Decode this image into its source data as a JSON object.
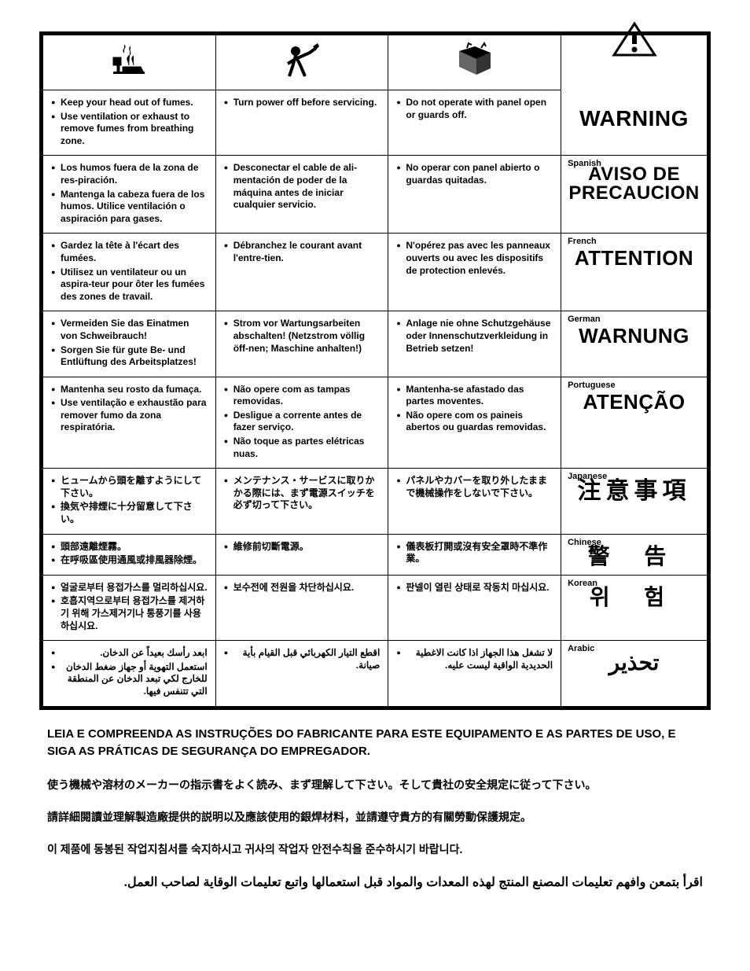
{
  "colors": {
    "border": "#000000",
    "text": "#000000",
    "bg": "#ffffff"
  },
  "columns": [
    {
      "icon": "fumes"
    },
    {
      "icon": "servicing"
    },
    {
      "icon": "panel"
    },
    {
      "icon": "warning-triangle"
    }
  ],
  "rows": {
    "en": {
      "c1": [
        "Keep your head out of fumes.",
        "Use ventilation or exhaust to remove fumes from breathing zone."
      ],
      "c2": [
        "Turn power off before servicing."
      ],
      "c3": [
        "Do not operate with panel open or guards off."
      ],
      "lang": "",
      "warn": "WARNING",
      "cls": "warn-en"
    },
    "es": {
      "c1": [
        "Los humos fuera de la zona de res-piración.",
        "Mantenga la cabeza fuera de los humos. Utilice ventilación o aspiración para gases."
      ],
      "c2": [
        "Desconectar el cable de ali-mentación de poder de la máquina antes de iniciar cualquier servicio."
      ],
      "c3": [
        "No operar con panel abierto o guardas quitadas."
      ],
      "lang": "Spanish",
      "warn": "AVISO DE PRECAUCION",
      "cls": "warn-es"
    },
    "fr": {
      "c1": [
        "Gardez la tête à l'écart des fumées.",
        "Utilisez un ventilateur ou un aspira-teur pour ôter les fumées des zones de travail."
      ],
      "c2": [
        "Débranchez le courant avant l'entre-tien."
      ],
      "c3": [
        "N'opérez pas avec les panneaux ouverts ou avec les dispositifs de protection enlevés."
      ],
      "lang": "French",
      "warn": "ATTENTION",
      "cls": "warn-fr"
    },
    "de": {
      "c1": [
        "Vermeiden Sie das Einatmen von Schweibrauch!",
        "Sorgen Sie für gute Be- und Entlüftung des Arbeitsplatzes!"
      ],
      "c2": [
        "Strom vor Wartungsarbeiten abschalten! (Netzstrom völlig öff-nen; Maschine anhalten!)"
      ],
      "c3": [
        "Anlage nie ohne Schutzgehäuse oder Innenschutzverkleidung in Betrieb setzen!"
      ],
      "lang": "German",
      "warn": "WARNUNG",
      "cls": "warn-de"
    },
    "pt": {
      "c1": [
        "Mantenha seu rosto da fumaça.",
        "Use ventilação e exhaustão para remover fumo da zona respiratória."
      ],
      "c2": [
        "Não opere com as tampas removidas.",
        "Desligue a corrente antes de fazer serviço.",
        "Não toque as partes elétricas nuas."
      ],
      "c3": [
        "Mantenha-se afastado das partes moventes.",
        "Não opere com os paineis abertos ou guardas removidas."
      ],
      "lang": "Portuguese",
      "warn": "ATENÇÃO",
      "cls": "warn-pt"
    },
    "ja": {
      "c1": [
        "ヒュームから頭を離すようにして下さい。",
        "換気や排煙に十分留意して下さい。"
      ],
      "c2": [
        "メンテナンス・サービスに取りかかる際には、まず電源スイッチを必ず切って下さい。"
      ],
      "c3": [
        "パネルやカバーを取り外したままで機械操作をしないで下さい。"
      ],
      "lang": "Japanese",
      "warn": "注意事項",
      "cls": "warn-ja"
    },
    "zh": {
      "c1": [
        "頭部遠離煙霧。",
        "在呼吸區使用通風或排風器除煙。"
      ],
      "c2": [
        "維修前切斷電源。"
      ],
      "c3": [
        "儀表板打開或沒有安全罩時不準作業。"
      ],
      "lang": "Chinese",
      "warn": "警 告",
      "cls": "warn-zh"
    },
    "ko": {
      "c1": [
        "얼굴로부터  용접가스를  멀리하십시요.",
        "호흡지역으로부터  용접가스를 제거하기  위해  가스제거기나 통풍기를  사용하십시요."
      ],
      "c2": [
        "보수전에  전원을  차단하십시요."
      ],
      "c3": [
        "판넬이  열린  상태로  작동치 마십시요."
      ],
      "lang": "Korean",
      "warn": "위 험",
      "cls": "warn-ko"
    },
    "ar": {
      "c1": [
        "ابعد رأسك بعيداً عن الدخان.",
        "استعمل التهوية أو جهاز ضغط الدخان للخارج لكي تبعد الدخان عن المنطقة التي تتنفس فيها."
      ],
      "c2": [
        "اقطع التيار الكهربائي قبل القيام بأية صيانة."
      ],
      "c3": [
        "لا تشغل هذا الجهاز اذا كانت الاغطية الحديدية الواقية ليست عليه."
      ],
      "lang": "Arabic",
      "warn": "تحذير",
      "cls": "warn-ar"
    }
  },
  "footer": {
    "pt": "LEIA E COMPREENDA AS INSTRUÇÕES DO FABRICANTE PARA ESTE EQUIPAMENTO E AS PARTES DE USO, E SIGA AS PRÁTICAS DE SEGURANÇA DO EMPREGADOR.",
    "ja": "使う機械や溶材のメーカーの指示書をよく読み、まず理解して下さい。そして貴社の安全規定に従って下さい。",
    "zh": "請詳細閱讀並理解製造廠提供的説明以及應該使用的銀焊材料，並請遵守貴方的有關勞動保護規定。",
    "ko": "이  제품에  동봉된  작업지침서를  숙지하시고  귀사의  작업자  안전수칙을  준수하시기  바랍니다.",
    "ar": "اقرأ بتمعن وافهم تعليمات المصنع المنتج لهذه المعدات والمواد قبل استعمالها واتبع تعليمات الوقاية لصاحب العمل."
  }
}
